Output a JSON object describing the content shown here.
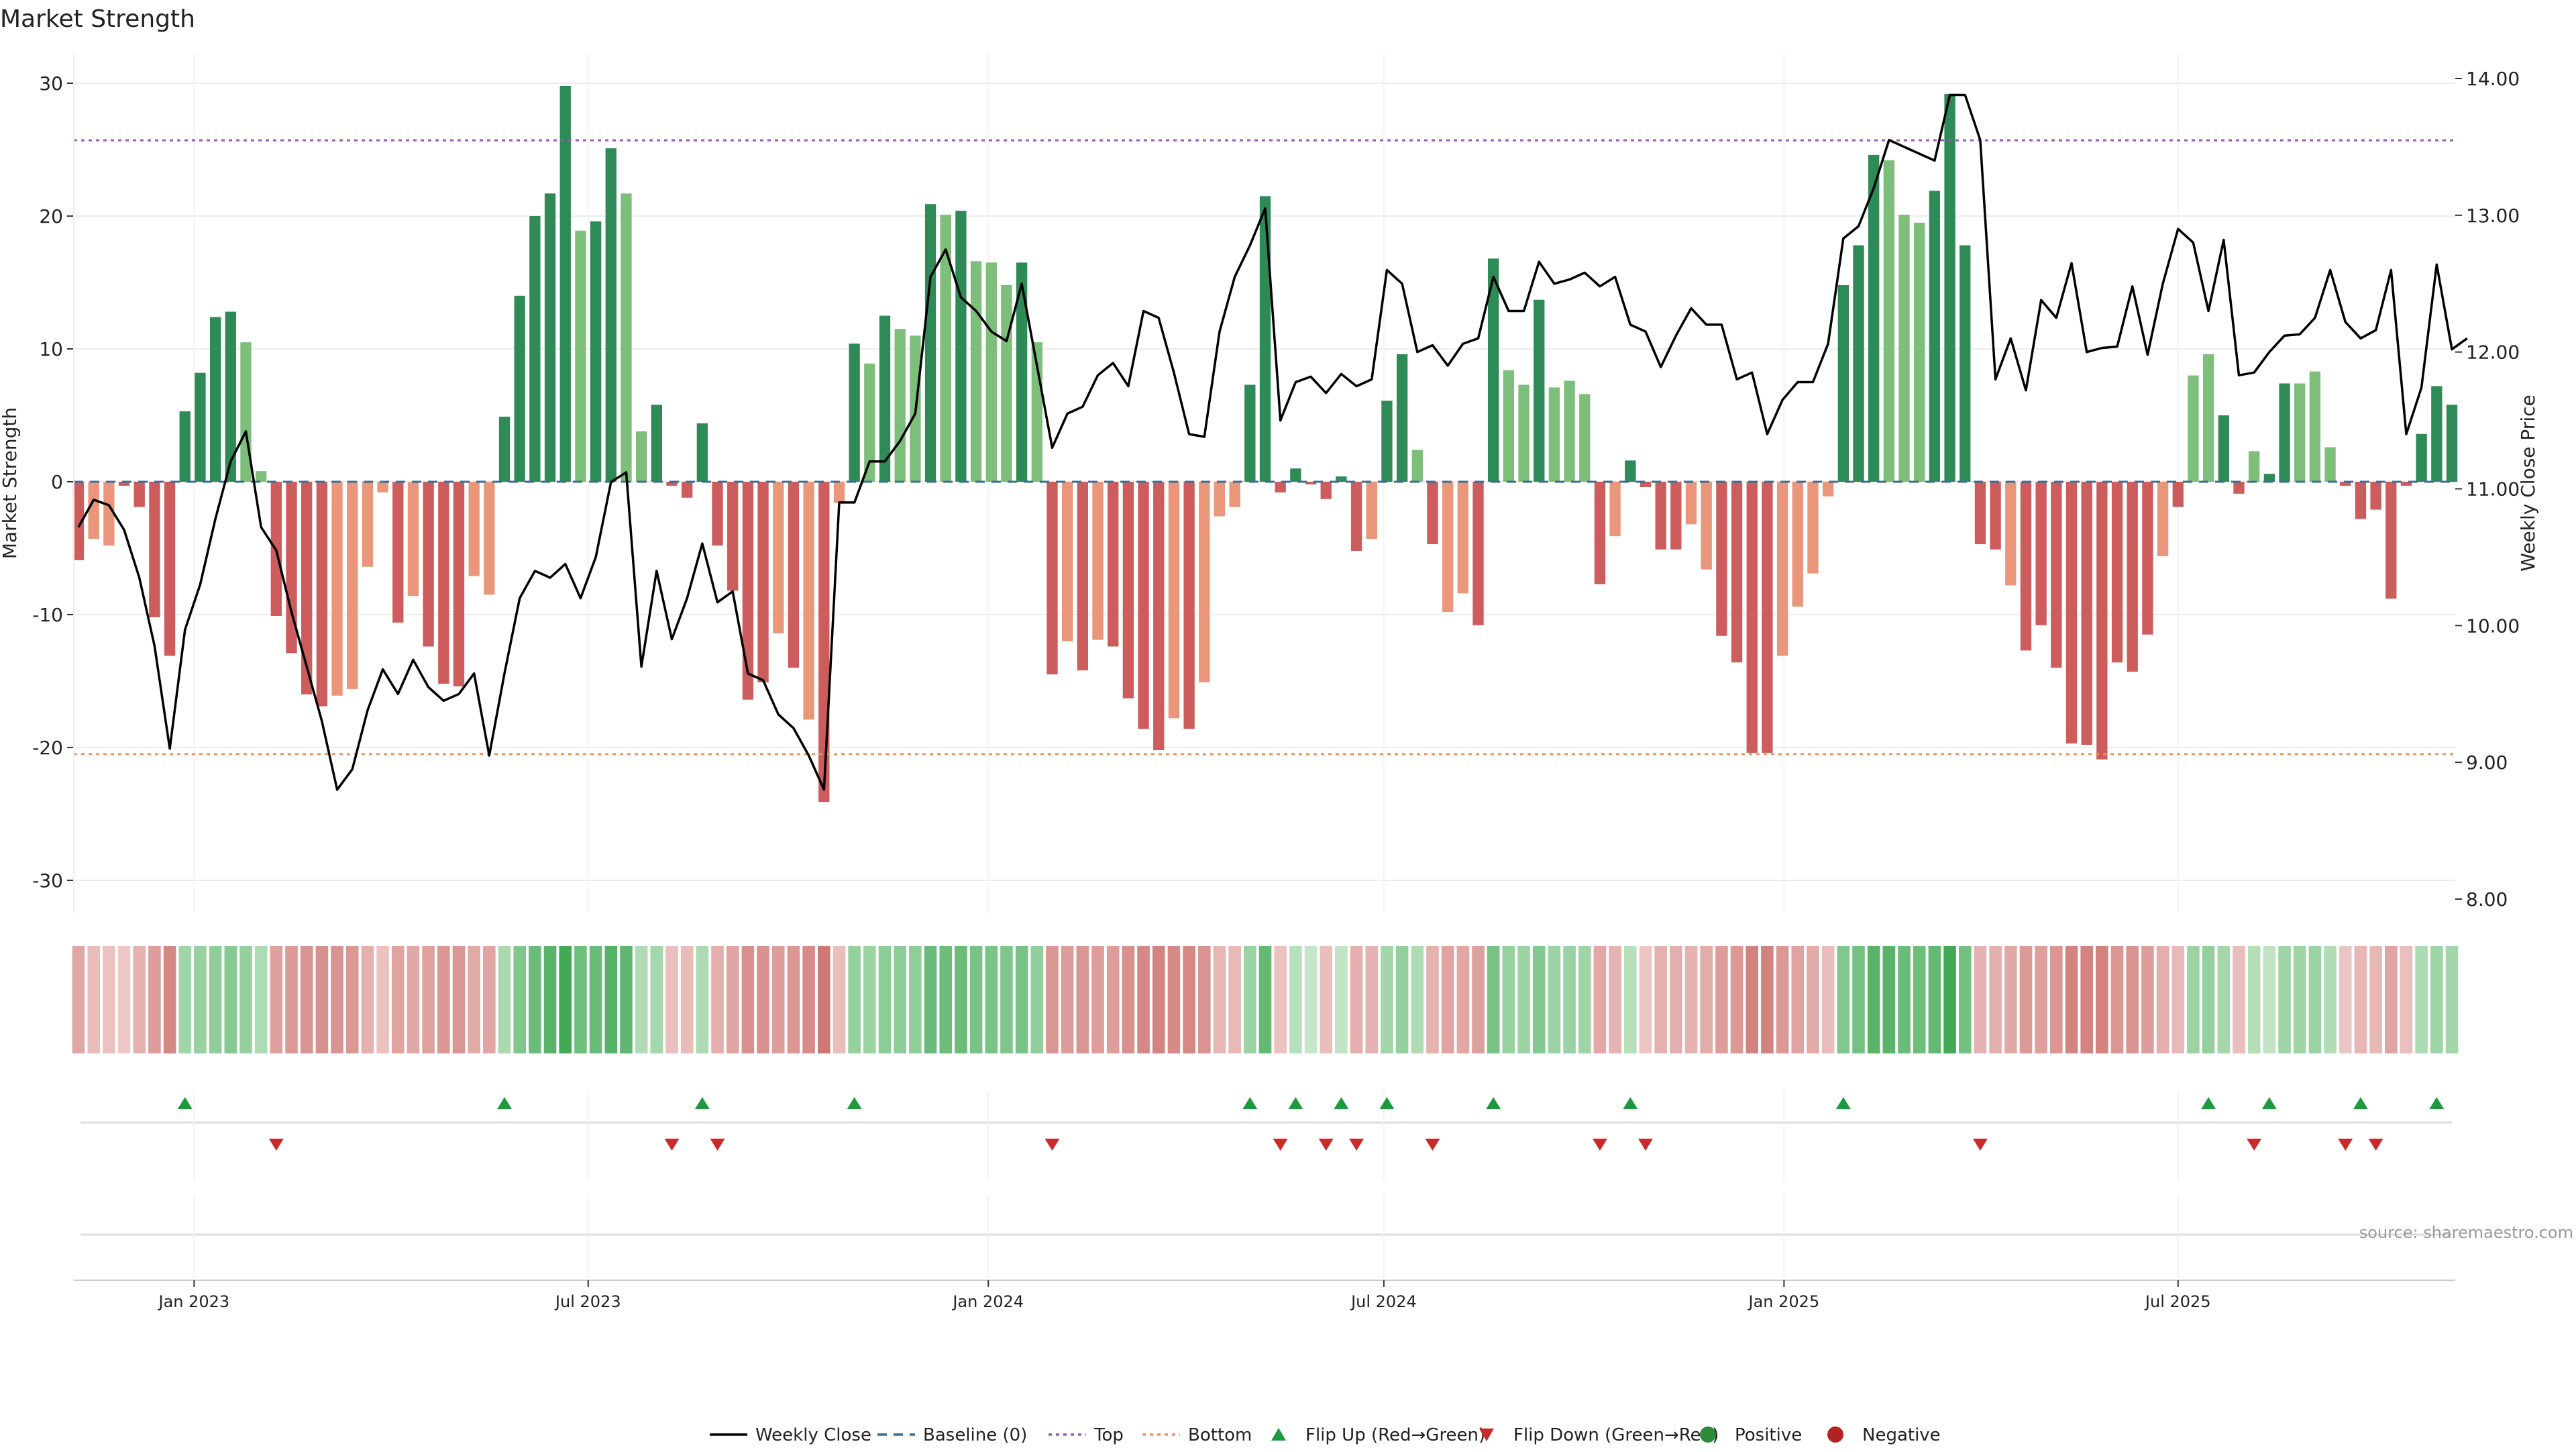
{
  "chart_data": {
    "type": "bar+line",
    "title": "Market Strength",
    "ylabel_left": "Market Strength",
    "ylabel_right": "Weekly Close Price",
    "ylim_left": [
      -32,
      32
    ],
    "ylim_right": [
      7.9,
      14.2
    ],
    "yticks_left": [
      30,
      20,
      10,
      0,
      -10,
      -20,
      -30
    ],
    "yticks_right": [
      "14.00",
      "13.00",
      "12.00",
      "11.00",
      "10.00",
      "9.00",
      "8.00"
    ],
    "x_ticks": [
      {
        "label": "Jan 2023",
        "index": 7.6
      },
      {
        "label": "Jul 2023",
        "index": 33.5
      },
      {
        "label": "Jan 2024",
        "index": 59.8
      },
      {
        "label": "Jul 2024",
        "index": 85.8
      },
      {
        "label": "Jan 2025",
        "index": 112.1
      },
      {
        "label": "Jul 2025",
        "index": 138.0
      }
    ],
    "top_level": 25.7,
    "bottom_level": -20.5,
    "strength": [
      -5.9,
      -4.3,
      -4.8,
      -0.3,
      -1.9,
      -10.2,
      -13.1,
      5.3,
      8.2,
      12.4,
      12.8,
      10.5,
      0.8,
      -10.1,
      -12.9,
      -16,
      -16.9,
      -16.1,
      -15.6,
      -6.4,
      -0.8,
      -10.6,
      -8.6,
      -12.4,
      -15.2,
      -15.4,
      -7.1,
      -8.5,
      4.9,
      14,
      20,
      21.7,
      29.8,
      18.9,
      19.6,
      25.1,
      21.7,
      3.8,
      5.8,
      -0.3,
      -1.2,
      4.4,
      -4.8,
      -8.2,
      -16.4,
      -15.1,
      -11.4,
      -14,
      -17.9,
      -24.1,
      -1.6,
      10.4,
      8.9,
      12.5,
      11.5,
      11,
      20.9,
      20.1,
      20.4,
      16.6,
      16.5,
      14.8,
      16.5,
      10.5,
      -14.5,
      -12,
      -14.2,
      -11.9,
      -12.4,
      -16.3,
      -18.6,
      -20.2,
      -17.8,
      -18.6,
      -15.1,
      -2.6,
      -1.9,
      7.3,
      21.5,
      -0.8,
      1,
      -0.2,
      -1.3,
      0.4,
      -5.2,
      -4.3,
      6.1,
      9.6,
      2.4,
      -4.7,
      -9.8,
      -8.4,
      -10.8,
      16.8,
      8.4,
      7.3,
      13.7,
      7.1,
      7.6,
      6.6,
      -7.7,
      -4.1,
      1.6,
      -0.4,
      -5.1,
      -5.1,
      -3.2,
      -6.6,
      -11.6,
      -13.6,
      -20.4,
      -20.4,
      -13.1,
      -9.4,
      -6.9,
      -1.1,
      14.8,
      17.8,
      24.6,
      24.2,
      20.1,
      19.5,
      21.9,
      29.2,
      17.8,
      -4.7,
      -5.1,
      -7.8,
      -12.7,
      -10.8,
      -14,
      -19.7,
      -19.8,
      -20.9,
      -13.6,
      -14.3,
      -11.5,
      -5.6,
      -1.9,
      8,
      9.6,
      5,
      -0.9,
      2.3,
      0.6,
      7.4,
      7.4,
      8.3,
      2.6,
      -0.3,
      -2.8,
      -2.1,
      -8.8,
      -0.3,
      3.6,
      7.2,
      5.8
    ],
    "bar_shade": [
      0,
      1,
      1,
      0,
      0,
      0,
      0,
      0,
      0,
      0,
      0,
      1,
      1,
      0,
      0,
      0,
      0,
      1,
      1,
      1,
      1,
      0,
      1,
      0,
      0,
      0,
      1,
      1,
      0,
      0,
      0,
      0,
      0,
      1,
      0,
      0,
      1,
      1,
      0,
      0,
      0,
      0,
      0,
      0,
      0,
      0,
      1,
      0,
      1,
      0,
      1,
      0,
      1,
      0,
      1,
      1,
      0,
      1,
      0,
      1,
      1,
      1,
      0,
      1,
      0,
      1,
      0,
      1,
      0,
      0,
      0,
      0,
      1,
      0,
      1,
      1,
      1,
      0,
      0,
      0,
      0,
      0,
      0,
      0,
      0,
      1,
      0,
      0,
      1,
      0,
      1,
      1,
      0,
      0,
      1,
      1,
      0,
      1,
      1,
      1,
      0,
      1,
      0,
      0,
      0,
      0,
      1,
      1,
      0,
      0,
      0,
      0,
      1,
      1,
      1,
      1,
      0,
      0,
      0,
      1,
      1,
      1,
      0,
      0,
      0,
      0,
      0,
      1,
      0,
      0,
      0,
      0,
      0,
      0,
      0,
      0,
      0,
      1,
      0,
      1,
      1,
      0,
      0,
      1,
      0,
      0,
      1,
      1,
      1,
      0,
      0,
      0,
      0,
      0,
      0,
      0,
      0,
      0
    ],
    "weekly_close": [
      10.72,
      10.92,
      10.88,
      10.7,
      10.35,
      9.85,
      9.1,
      9.97,
      10.3,
      10.78,
      11.2,
      11.42,
      10.72,
      10.55,
      10.1,
      9.7,
      9.3,
      8.8,
      8.95,
      9.38,
      9.68,
      9.5,
      9.75,
      9.55,
      9.45,
      9.5,
      9.65,
      9.05,
      9.65,
      10.2,
      10.4,
      10.35,
      10.45,
      10.2,
      10.5,
      11.05,
      11.12,
      9.7,
      10.4,
      9.9,
      10.2,
      10.6,
      10.17,
      10.25,
      9.65,
      9.6,
      9.35,
      9.25,
      9.05,
      8.8,
      10.9,
      10.9,
      11.2,
      11.2,
      11.35,
      11.55,
      12.55,
      12.75,
      12.4,
      12.3,
      12.15,
      12.08,
      12.5,
      11.9,
      11.3,
      11.55,
      11.6,
      11.83,
      11.92,
      11.75,
      12.3,
      12.25,
      11.85,
      11.4,
      11.38,
      12.15,
      12.55,
      12.78,
      13.05,
      11.5,
      11.78,
      11.82,
      11.7,
      11.84,
      11.75,
      11.8,
      12.6,
      12.5,
      12.0,
      12.05,
      11.9,
      12.06,
      12.1,
      12.55,
      12.3,
      12.3,
      12.66,
      12.5,
      12.53,
      12.58,
      12.48,
      12.55,
      12.2,
      12.15,
      11.89,
      12.12,
      12.32,
      12.2,
      12.2,
      11.8,
      11.85,
      11.4,
      11.65,
      11.78,
      11.78,
      12.06,
      12.83,
      12.92,
      13.2,
      13.55,
      13.5,
      13.45,
      13.4,
      13.88,
      13.88,
      13.55,
      11.8,
      12.1,
      11.72,
      12.38,
      12.25,
      12.65,
      12.0,
      12.03,
      12.04,
      12.48,
      11.98,
      12.5,
      12.9,
      12.8,
      12.3,
      12.82,
      11.83,
      11.85,
      12.0,
      12.12,
      12.13,
      12.25,
      12.6,
      12.22,
      12.1,
      12.16,
      12.6,
      11.4,
      11.74,
      12.64,
      12.02,
      12.1
    ],
    "strip_values": [
      -14.2,
      -7.1,
      -5.4,
      -3.3,
      -10.4,
      -17.5,
      -24.6,
      13.0,
      15.0,
      17.0,
      19.0,
      15.3,
      9.8,
      -16.4,
      -18.9,
      -20.2,
      -21.4,
      -20.3,
      -18.9,
      -11.2,
      -5.7,
      -15.1,
      -13.5,
      -16.2,
      -19.4,
      -19.8,
      -13.1,
      -14.6,
      10.9,
      20.3,
      25.6,
      30.0,
      35.6,
      24.4,
      26.0,
      31.0,
      28.1,
      9.2,
      11.9,
      -6.0,
      -7.3,
      10.1,
      -11.5,
      -14.8,
      -21.4,
      -20.8,
      -16.9,
      -19.8,
      -23.3,
      -29.3,
      -6.3,
      15.5,
      14.0,
      17.7,
      17.2,
      16.8,
      26.2,
      25.4,
      25.8,
      22.4,
      22.2,
      20.6,
      22.1,
      16.1,
      -19.6,
      -17.4,
      -19.6,
      -17.2,
      -17.4,
      -21.7,
      -24.2,
      -25.6,
      -23.5,
      -24.3,
      -20.6,
      -8.7,
      -8.0,
      14.1,
      27.3,
      -5.1,
      7.6,
      4.0,
      -6.3,
      5.1,
      -11.2,
      -10.4,
      12.2,
      15.9,
      9.1,
      -10.5,
      -15.2,
      -14.0,
      -16.4,
      22.3,
      15.0,
      14.0,
      19.4,
      13.8,
      14.2,
      13.2,
      -13.8,
      -10.4,
      7.8,
      -4.4,
      -10.9,
      -11.4,
      -9.8,
      -12.5,
      -17.1,
      -19.1,
      -25.9,
      -26.0,
      -18.7,
      -15.2,
      -12.8,
      -6.8,
      20.2,
      23.4,
      30.0,
      29.9,
      25.7,
      25.3,
      27.7,
      35.6,
      23.5,
      -10.4,
      -11.0,
      -13.5,
      -18.5,
      -16.5,
      -19.7,
      -25.6,
      -25.6,
      -26.3,
      -19.5,
      -20.1,
      -17.4,
      -11.7,
      -7.8,
      14.1,
      15.9,
      11.6,
      -6.4,
      8.2,
      5.2,
      13.3,
      13.2,
      14.0,
      8.8,
      -4.3,
      -9.1,
      -8.4,
      -14.7,
      -6.5,
      10.2,
      13.7,
      12.2
    ],
    "flip_up_index": [
      7,
      28,
      41,
      51,
      77,
      80,
      83,
      86,
      93,
      102,
      116,
      140,
      144,
      150,
      155
    ],
    "flip_down_index": [
      13,
      39,
      42,
      64,
      79,
      82,
      84,
      89,
      100,
      103,
      125,
      143,
      149,
      151
    ],
    "legend": [
      {
        "label": "Weekly Close",
        "kind": "line",
        "color": "#000000"
      },
      {
        "label": "Baseline (0)",
        "kind": "dash",
        "color": "#3a6e95"
      },
      {
        "label": "Top",
        "kind": "dot",
        "color": "#9b59b6"
      },
      {
        "label": "Bottom",
        "kind": "dot",
        "color": "#e8965a"
      },
      {
        "label": "Flip Up (Red→Green)",
        "kind": "up",
        "color": "#1e9a3e"
      },
      {
        "label": "Flip Down (Green→Red)",
        "kind": "down",
        "color": "#cc2a2a"
      },
      {
        "label": "Positive",
        "kind": "circle",
        "color": "#2e8b3a"
      },
      {
        "label": "Negative",
        "kind": "circle",
        "color": "#b22222"
      }
    ],
    "source": "source: sharemaestro.com"
  },
  "colors": {
    "pos_dark": "#2e8b57",
    "pos_light": "#7dbe7b",
    "neg_dark": "#cd5c5c",
    "neg_light": "#e9967a",
    "grid": "#ececec"
  }
}
